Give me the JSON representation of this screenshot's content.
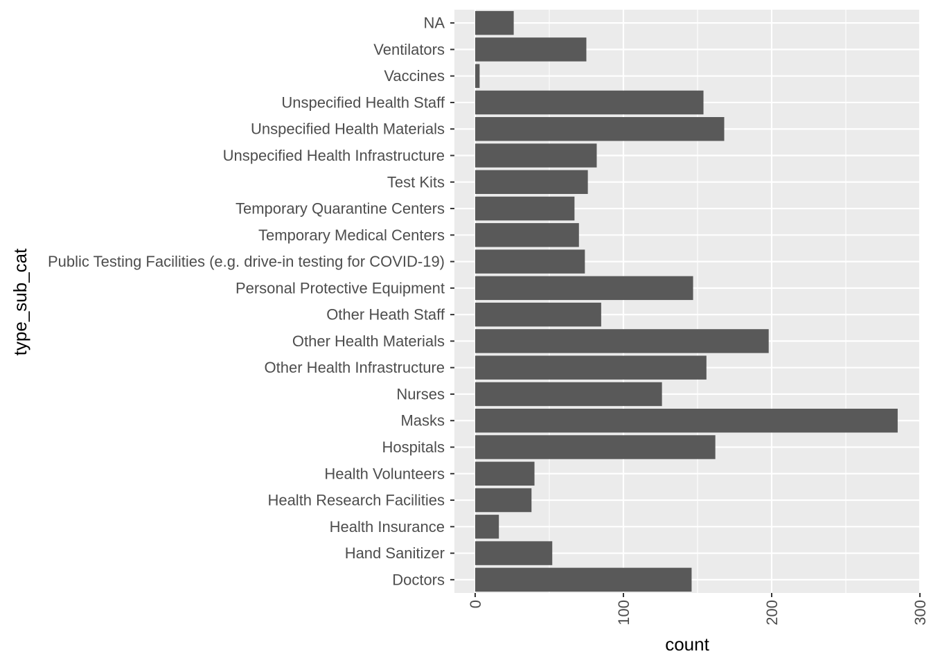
{
  "chart_data": {
    "type": "bar",
    "orientation": "horizontal",
    "categories": [
      "NA",
      "Ventilators",
      "Vaccines",
      "Unspecified Health Staff",
      "Unspecified Health Materials",
      "Unspecified Health Infrastructure",
      "Test Kits",
      "Temporary Quarantine Centers",
      "Temporary Medical Centers",
      "Public Testing Facilities (e.g. drive-in testing for COVID-19)",
      "Personal Protective Equipment",
      "Other Heath Staff",
      "Other Health Materials",
      "Other Health Infrastructure",
      "Nurses",
      "Masks",
      "Hospitals",
      "Health Volunteers",
      "Health Research Facilities",
      "Health Insurance",
      "Hand Sanitizer",
      "Doctors"
    ],
    "values": [
      26,
      75,
      3,
      154,
      168,
      82,
      76,
      67,
      70,
      74,
      147,
      85,
      198,
      156,
      126,
      285,
      162,
      40,
      38,
      16,
      52,
      146
    ],
    "xlabel": "count",
    "ylabel": "type_sub_cat",
    "xlim": [
      -14,
      300
    ],
    "xticks": [
      0,
      100,
      200,
      300
    ],
    "grid": true,
    "colors": {
      "bar": "#595959",
      "panel": "#ebebeb",
      "grid": "#ffffff",
      "text": "#4d4d4d",
      "tick": "#333333"
    }
  }
}
